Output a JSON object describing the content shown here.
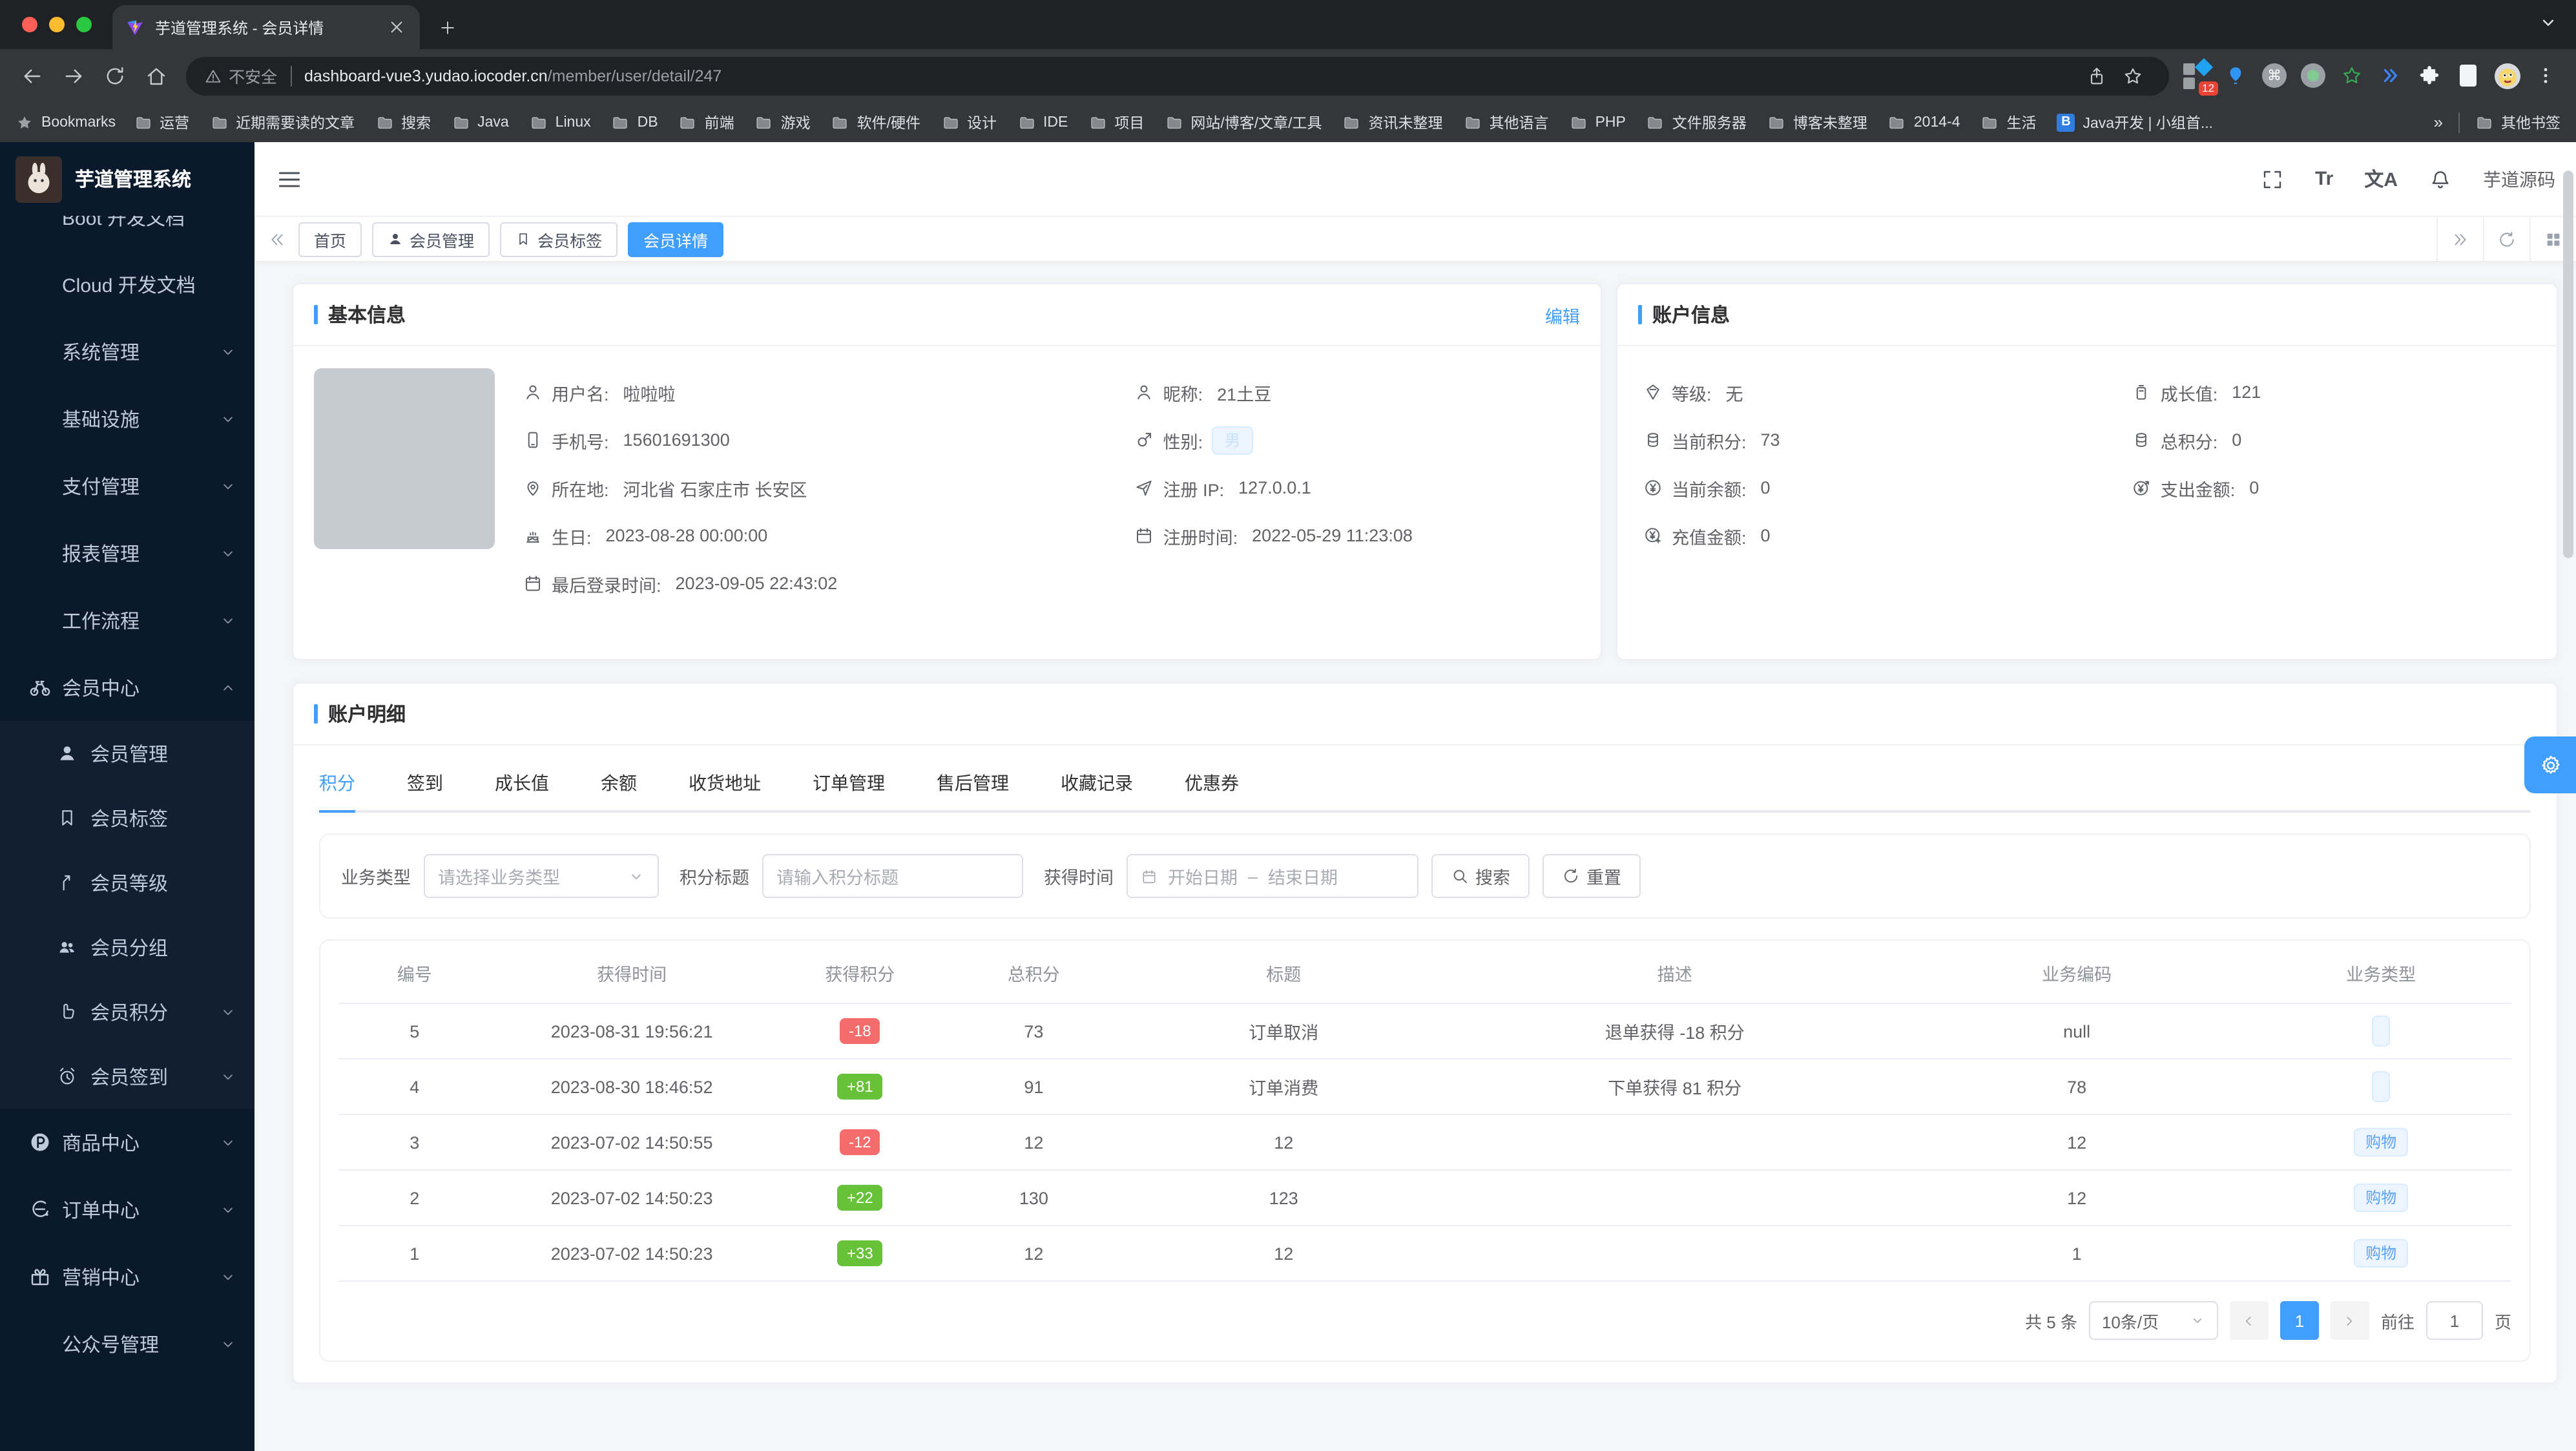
{
  "browser": {
    "tab": {
      "title": "芋道管理系统 - 会员详情"
    },
    "address": {
      "warning_label": "不安全",
      "host": "dashboard-vue3.yudao.iocoder.cn",
      "path": "/member/user/detail/247"
    },
    "extension_badge": "12",
    "cmd_symbol": "⌘",
    "b_icon_letter": "B",
    "bookmarks_bar": {
      "star_label": "Bookmarks",
      "folders": [
        "运营",
        "近期需要读的文章",
        "搜索",
        "Java",
        "Linux",
        "DB",
        "前端",
        "游戏",
        "软件/硬件",
        "设计",
        "IDE",
        "项目",
        "网站/博客/文章/工具",
        "资讯未整理",
        "其他语言",
        "PHP",
        "文件服务器",
        "博客未整理",
        "2014-4",
        "生活"
      ],
      "b_bookmark": "Java开发 | 小组首...",
      "overflow": "»",
      "other": "其他书签"
    }
  },
  "sidebar": {
    "title": "芋道管理系统",
    "menu": [
      {
        "label": "Boot 开发文档",
        "type": "main"
      },
      {
        "label": "Cloud 开发文档",
        "type": "main"
      },
      {
        "label": "系统管理",
        "type": "main",
        "chevron": "down"
      },
      {
        "label": "基础设施",
        "type": "main",
        "chevron": "down"
      },
      {
        "label": "支付管理",
        "type": "main",
        "chevron": "down"
      },
      {
        "label": "报表管理",
        "type": "main",
        "chevron": "down"
      },
      {
        "label": "工作流程",
        "type": "main",
        "chevron": "down"
      },
      {
        "label": "会员中心",
        "type": "main",
        "icon": "bicycle-icon",
        "chevron": "up"
      },
      {
        "label": "会员管理",
        "type": "sub",
        "icon": "user-solid-icon"
      },
      {
        "label": "会员标签",
        "type": "sub",
        "icon": "bookmark-icon"
      },
      {
        "label": "会员等级",
        "type": "sub",
        "icon": "level-up-icon"
      },
      {
        "label": "会员分组",
        "type": "sub",
        "icon": "group-icon"
      },
      {
        "label": "会员积分",
        "type": "sub",
        "icon": "thumb-icon",
        "chevron": "down"
      },
      {
        "label": "会员签到",
        "type": "sub",
        "icon": "alarm-icon",
        "chevron": "down"
      },
      {
        "label": "商品中心",
        "type": "main",
        "icon": "product-icon",
        "chevron": "down"
      },
      {
        "label": "订单中心",
        "type": "main",
        "icon": "order-icon",
        "chevron": "down"
      },
      {
        "label": "营销中心",
        "type": "main",
        "icon": "gift-icon",
        "chevron": "down"
      },
      {
        "label": "公众号管理",
        "type": "main",
        "chevron": "down"
      }
    ]
  },
  "header": {
    "font_size_label": "Tr",
    "locale_label": "文A",
    "username": "芋道源码"
  },
  "tags_view": {
    "tabs": [
      {
        "label": "首页"
      },
      {
        "label": "会员管理",
        "icon": "user-solid-icon"
      },
      {
        "label": "会员标签",
        "icon": "bookmark-icon"
      },
      {
        "label": "会员详情",
        "active": true
      }
    ]
  },
  "basic_info": {
    "title": "基本信息",
    "edit_label": "编辑",
    "left_fields": [
      {
        "icon": "user-icon",
        "label": "用户名:",
        "value": "啦啦啦"
      },
      {
        "icon": "phone-icon",
        "label": "手机号:",
        "value": "15601691300"
      },
      {
        "icon": "location-icon",
        "label": "所在地:",
        "value": "河北省 石家庄市 长安区"
      },
      {
        "icon": "cake-icon",
        "label": "生日:",
        "value": "2023-08-28 00:00:00"
      },
      {
        "icon": "calendar-icon",
        "label": "最后登录时间:",
        "value": "2023-09-05 22:43:02"
      }
    ],
    "right_fields": [
      {
        "icon": "user-icon",
        "label": "昵称:",
        "value": "21土豆"
      },
      {
        "icon": "male-icon",
        "label": "性别:",
        "value": "男",
        "tag": true
      },
      {
        "icon": "send-icon",
        "label": "注册 IP:",
        "value": "127.0.0.1"
      },
      {
        "icon": "calendar-icon",
        "label": "注册时间:",
        "value": "2022-05-29 11:23:08"
      }
    ]
  },
  "account_info": {
    "title": "账户信息",
    "left_fields": [
      {
        "icon": "level-icon",
        "label": "等级:",
        "value": "无"
      },
      {
        "icon": "coins-icon",
        "label": "当前积分:",
        "value": "73"
      },
      {
        "icon": "balance-icon",
        "label": "当前余额:",
        "value": "0"
      },
      {
        "icon": "recharge-icon",
        "label": "充值金额:",
        "value": "0"
      }
    ],
    "right_fields": [
      {
        "icon": "growth-icon",
        "label": "成长值:",
        "value": "121"
      },
      {
        "icon": "coins-icon",
        "label": "总积分:",
        "value": "0"
      },
      {
        "icon": "expense-icon",
        "label": "支出金额:",
        "value": "0"
      }
    ]
  },
  "account_detail": {
    "title": "账户明细",
    "tabs": [
      {
        "label": "积分",
        "active": true
      },
      {
        "label": "签到"
      },
      {
        "label": "成长值"
      },
      {
        "label": "余额"
      },
      {
        "label": "收货地址"
      },
      {
        "label": "订单管理"
      },
      {
        "label": "售后管理"
      },
      {
        "label": "收藏记录"
      },
      {
        "label": "优惠券"
      }
    ],
    "filter": {
      "type_label": "业务类型",
      "type_placeholder": "请选择业务类型",
      "title_label": "积分标题",
      "title_placeholder": "请输入积分标题",
      "time_label": "获得时间",
      "start_placeholder": "开始日期",
      "range_separator": "–",
      "end_placeholder": "结束日期",
      "search_label": "搜索",
      "reset_label": "重置"
    },
    "table": {
      "headers": [
        "编号",
        "获得时间",
        "获得积分",
        "总积分",
        "标题",
        "描述",
        "业务编码",
        "业务类型"
      ],
      "rows": [
        {
          "id": "5",
          "time": "2023-08-31 19:56:21",
          "points": "-18",
          "points_type": "danger",
          "total": "73",
          "title": "订单取消",
          "desc": "退单获得 -18 积分",
          "biz_code": "null",
          "biz_type": ""
        },
        {
          "id": "4",
          "time": "2023-08-30 18:46:52",
          "points": "+81",
          "points_type": "success",
          "total": "91",
          "title": "订单消费",
          "desc": "下单获得 81 积分",
          "biz_code": "78",
          "biz_type": ""
        },
        {
          "id": "3",
          "time": "2023-07-02 14:50:55",
          "points": "-12",
          "points_type": "danger",
          "total": "12",
          "title": "12",
          "desc": "",
          "biz_code": "12",
          "biz_type": "购物"
        },
        {
          "id": "2",
          "time": "2023-07-02 14:50:23",
          "points": "+22",
          "points_type": "success",
          "total": "130",
          "title": "123",
          "desc": "",
          "biz_code": "12",
          "biz_type": "购物"
        },
        {
          "id": "1",
          "time": "2023-07-02 14:50:23",
          "points": "+33",
          "points_type": "success",
          "total": "12",
          "title": "12",
          "desc": "",
          "biz_code": "1",
          "biz_type": "购物"
        }
      ]
    },
    "pagination": {
      "total": "共 5 条",
      "page_size": "10条/页",
      "current_page": "1",
      "goto_label": "前往",
      "goto_value": "1",
      "page_unit": "页"
    }
  },
  "colors": {
    "accent": "#409eff",
    "danger": "#f56c6c",
    "success": "#67c23a",
    "sidebar_bg": "#0a1a2c"
  }
}
